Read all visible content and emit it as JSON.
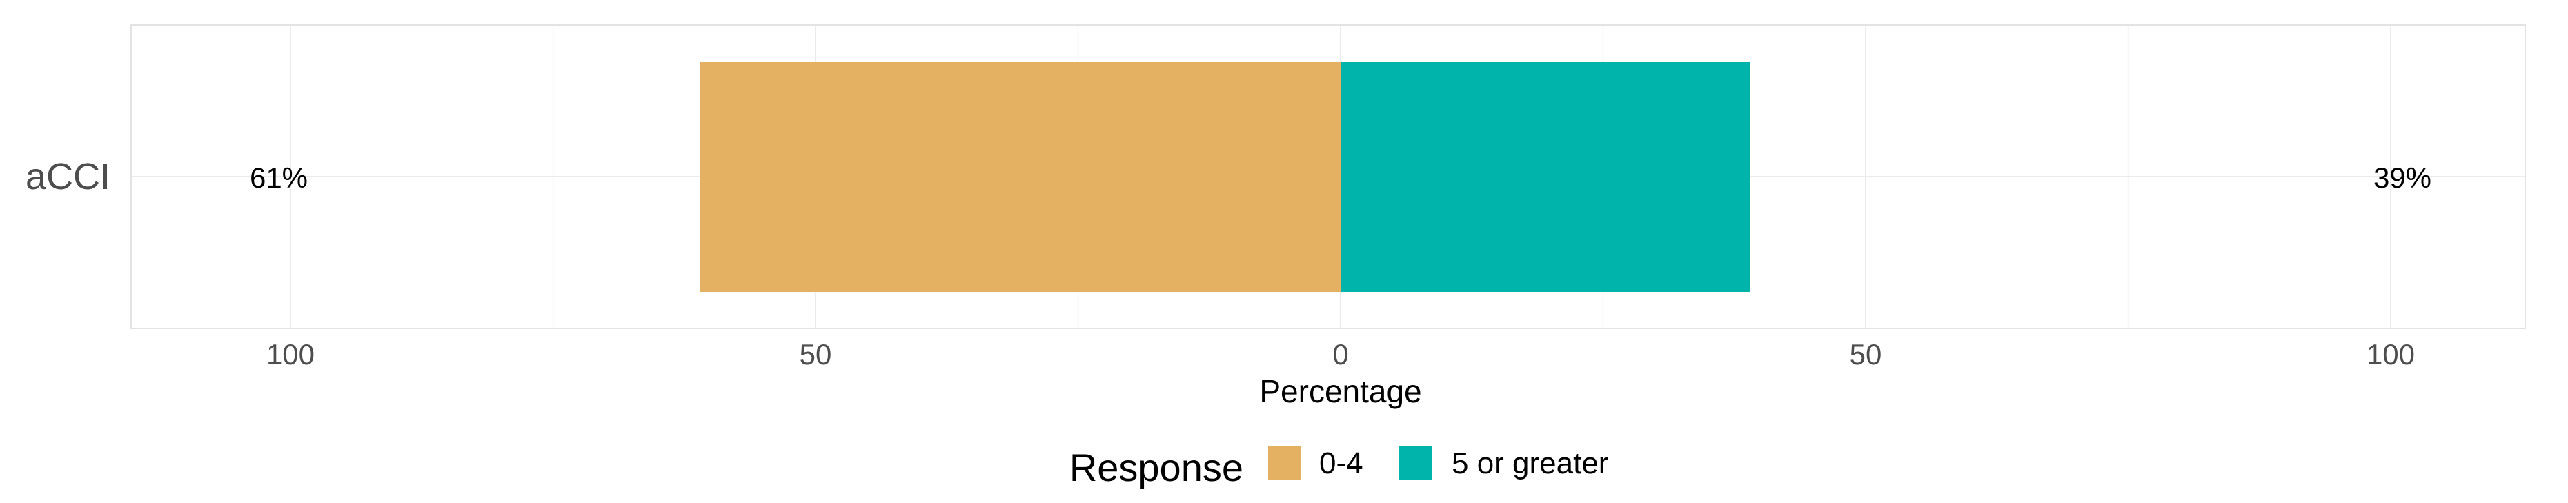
{
  "chart_data": {
    "type": "bar",
    "orientation": "horizontal-diverging",
    "categories": [
      "aCCI"
    ],
    "series": [
      {
        "name": "0-4",
        "values": [
          61
        ],
        "color": "#E4B062",
        "side": "left"
      },
      {
        "name": "5 or greater",
        "values": [
          39
        ],
        "color": "#00B4AC",
        "side": "right"
      }
    ],
    "percent_labels": {
      "left": "61%",
      "right": "39%"
    },
    "xlabel": "Percentage",
    "ylabel": "",
    "xlim": [
      -115,
      115
    ],
    "x_ticks": [
      {
        "value": -100,
        "label": "100"
      },
      {
        "value": -50,
        "label": "50"
      },
      {
        "value": 0,
        "label": "0"
      },
      {
        "value": 50,
        "label": "50"
      },
      {
        "value": 100,
        "label": "100"
      }
    ],
    "legend": {
      "title": "Response",
      "placement": "bottom",
      "entries": [
        "0-4",
        "5 or greater"
      ]
    },
    "grid": true
  }
}
